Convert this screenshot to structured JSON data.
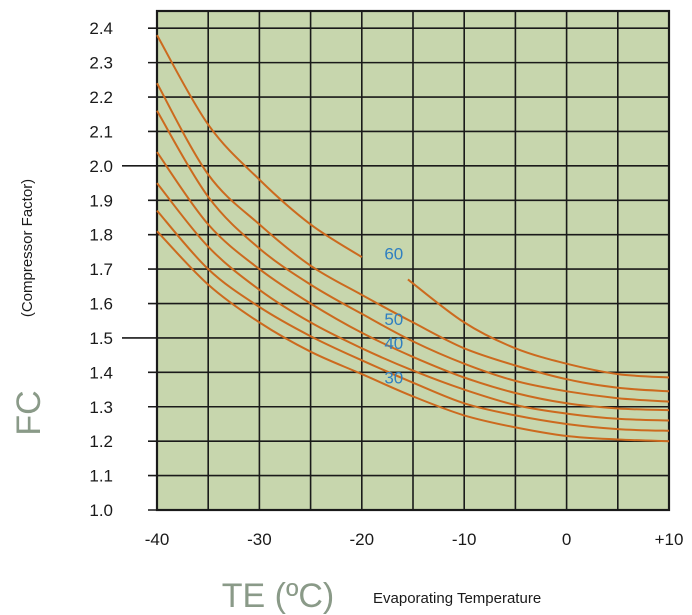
{
  "chart_data": {
    "type": "line",
    "xlabel": "TE (ºC)",
    "xlabel_sub": "Evaporating Temperature",
    "ylabel": "FC",
    "ylabel_sub": "(Compressor Factor)",
    "xlim": [
      -40,
      10
    ],
    "ylim": [
      1.0,
      2.45
    ],
    "grid": true,
    "x_ticks": [
      -40,
      -35,
      -30,
      -25,
      -20,
      -15,
      -10,
      -5,
      0,
      5,
      10
    ],
    "x_tick_labels": [
      "-40",
      "",
      "-30",
      "",
      "-20",
      "",
      "-10",
      "",
      "0",
      "",
      "+10"
    ],
    "y_ticks": [
      1.0,
      1.1,
      1.2,
      1.3,
      1.4,
      1.5,
      1.6,
      1.7,
      1.8,
      1.9,
      2.0,
      2.1,
      2.2,
      2.3,
      2.4
    ],
    "y_tick_labels": [
      "1.0",
      "1.1",
      "1.2",
      "1.3",
      "1.4",
      "1.5",
      "1.6",
      "1.7",
      "1.8",
      "1.9",
      "2.0",
      "2.1",
      "2.2",
      "2.3",
      "2.4"
    ],
    "colors": {
      "plot_background": "#c7d6ad",
      "grid": "#1a1a1a",
      "curve": "#cc6a1e",
      "curve_label": "#2f7fc1",
      "axis_title": "#8a9a88"
    },
    "series": [
      {
        "x": [
          -40,
          -35,
          -30,
          -25,
          -20,
          -15,
          -10,
          -5,
          0,
          5,
          10
        ],
        "y": [
          1.81,
          1.655,
          1.545,
          1.46,
          1.395,
          1.33,
          1.275,
          1.24,
          1.215,
          1.205,
          1.2
        ]
      },
      {
        "x": [
          -40,
          -35,
          -30,
          -25,
          -20,
          -15,
          -10,
          -5,
          0,
          5,
          10
        ],
        "y": [
          1.87,
          1.7,
          1.59,
          1.505,
          1.435,
          1.37,
          1.31,
          1.275,
          1.25,
          1.235,
          1.23
        ]
      },
      {
        "x": [
          -40,
          -35,
          -30,
          -25,
          -20,
          -15,
          -10,
          -5,
          0,
          5,
          10
        ],
        "y": [
          1.95,
          1.765,
          1.64,
          1.545,
          1.47,
          1.405,
          1.35,
          1.305,
          1.28,
          1.265,
          1.26
        ]
      },
      {
        "x": [
          -40,
          -35,
          -30,
          -25,
          -20,
          -15,
          -10,
          -5,
          0,
          5,
          10
        ],
        "y": [
          2.04,
          1.83,
          1.7,
          1.6,
          1.515,
          1.445,
          1.385,
          1.34,
          1.31,
          1.295,
          1.29
        ]
      },
      {
        "x": [
          -40,
          -35,
          -30,
          -25,
          -20,
          -15,
          -10,
          -5,
          0,
          5,
          10
        ],
        "y": [
          2.16,
          1.91,
          1.76,
          1.655,
          1.57,
          1.49,
          1.425,
          1.375,
          1.345,
          1.325,
          1.315
        ]
      },
      {
        "x": [
          -40,
          -35,
          -30,
          -25,
          -20,
          -15,
          -10,
          -5,
          0,
          5,
          10
        ],
        "y": [
          2.24,
          1.975,
          1.83,
          1.71,
          1.625,
          1.545,
          1.47,
          1.42,
          1.38,
          1.355,
          1.345
        ]
      },
      {
        "x": [
          -40,
          -35,
          -30,
          -25,
          -20
        ],
        "y": [
          2.38,
          2.12,
          1.96,
          1.83,
          1.735
        ]
      },
      {
        "x": [
          -15.5,
          -10,
          -5,
          0,
          5,
          10
        ],
        "y": [
          1.67,
          1.545,
          1.47,
          1.425,
          1.395,
          1.385
        ]
      }
    ],
    "annotations": [
      {
        "text": "60",
        "x": -17.8,
        "y": 1.745
      },
      {
        "text": "50",
        "x": -17.8,
        "y": 1.555
      },
      {
        "text": "40",
        "x": -17.8,
        "y": 1.485
      },
      {
        "text": "30",
        "x": -17.8,
        "y": 1.385
      }
    ]
  }
}
